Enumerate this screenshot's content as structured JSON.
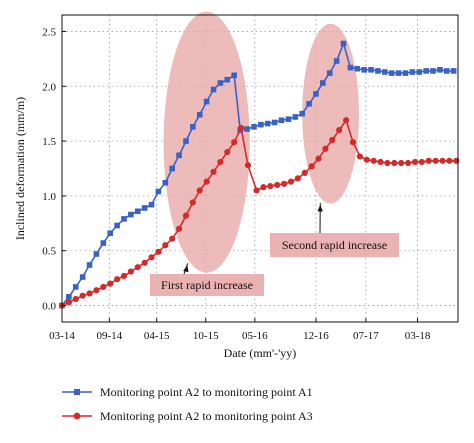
{
  "chart_data": {
    "type": "line",
    "xlabel": "Date (mm'-'yy)",
    "ylabel": "Inclined deformation (mm/m)",
    "xlim": [
      0,
      46
    ],
    "ylim": [
      -0.15,
      2.65
    ],
    "x_ticks": [
      {
        "x": 0,
        "label": "03-14"
      },
      {
        "x": 5.5,
        "label": "09-14"
      },
      {
        "x": 11,
        "label": "04-15"
      },
      {
        "x": 16.7,
        "label": "10-15"
      },
      {
        "x": 22.4,
        "label": "05-16"
      },
      {
        "x": 29.5,
        "label": "12-16"
      },
      {
        "x": 35.3,
        "label": "07-17"
      },
      {
        "x": 41.3,
        "label": "03-18"
      }
    ],
    "y_ticks": [
      0.0,
      0.5,
      1.0,
      1.5,
      2.0,
      2.5
    ],
    "y_tick_labels": [
      "0.0",
      "0.5",
      "1.0",
      "1.5",
      "2.0",
      "2.5"
    ],
    "grid": true,
    "series": [
      {
        "name": "Monitoring point A2 to monitoring point A1",
        "color": "#3a62c4",
        "marker": "square",
        "points": [
          [
            0,
            0.0
          ],
          [
            0.8,
            0.08
          ],
          [
            1.6,
            0.17
          ],
          [
            2.4,
            0.26
          ],
          [
            3.2,
            0.37
          ],
          [
            4.0,
            0.47
          ],
          [
            4.8,
            0.57
          ],
          [
            5.6,
            0.66
          ],
          [
            6.4,
            0.73
          ],
          [
            7.2,
            0.79
          ],
          [
            8.0,
            0.83
          ],
          [
            8.8,
            0.86
          ],
          [
            9.6,
            0.89
          ],
          [
            10.4,
            0.92
          ],
          [
            11.2,
            1.04
          ],
          [
            12.0,
            1.12
          ],
          [
            12.8,
            1.25
          ],
          [
            13.6,
            1.37
          ],
          [
            14.4,
            1.5
          ],
          [
            15.2,
            1.63
          ],
          [
            16.0,
            1.74
          ],
          [
            16.8,
            1.86
          ],
          [
            17.6,
            1.97
          ],
          [
            18.4,
            2.03
          ],
          [
            19.2,
            2.06
          ],
          [
            20.0,
            2.1
          ],
          [
            20.7,
            1.6
          ],
          [
            21.5,
            1.61
          ],
          [
            22.3,
            1.63
          ],
          [
            23.1,
            1.65
          ],
          [
            23.9,
            1.66
          ],
          [
            24.7,
            1.67
          ],
          [
            25.5,
            1.69
          ],
          [
            26.3,
            1.7
          ],
          [
            27.1,
            1.72
          ],
          [
            27.9,
            1.75
          ],
          [
            28.7,
            1.84
          ],
          [
            29.5,
            1.93
          ],
          [
            30.3,
            2.03
          ],
          [
            31.1,
            2.12
          ],
          [
            31.9,
            2.23
          ],
          [
            32.7,
            2.39
          ],
          [
            33.5,
            2.17
          ],
          [
            34.3,
            2.16
          ],
          [
            35.1,
            2.15
          ],
          [
            35.9,
            2.15
          ],
          [
            36.7,
            2.14
          ],
          [
            37.5,
            2.13
          ],
          [
            38.3,
            2.12
          ],
          [
            39.1,
            2.12
          ],
          [
            39.9,
            2.12
          ],
          [
            40.7,
            2.13
          ],
          [
            41.5,
            2.13
          ],
          [
            42.3,
            2.14
          ],
          [
            43.1,
            2.14
          ],
          [
            43.9,
            2.15
          ],
          [
            44.7,
            2.14
          ],
          [
            45.5,
            2.14
          ]
        ]
      },
      {
        "name": "Monitoring point A2 to monitoring point A3",
        "color": "#d42a2a",
        "marker": "circle",
        "points": [
          [
            0,
            0.0
          ],
          [
            0.8,
            0.03
          ],
          [
            1.6,
            0.06
          ],
          [
            2.4,
            0.09
          ],
          [
            3.2,
            0.11
          ],
          [
            4.0,
            0.14
          ],
          [
            4.8,
            0.17
          ],
          [
            5.6,
            0.2
          ],
          [
            6.4,
            0.24
          ],
          [
            7.2,
            0.27
          ],
          [
            8.0,
            0.31
          ],
          [
            8.8,
            0.35
          ],
          [
            9.6,
            0.39
          ],
          [
            10.4,
            0.44
          ],
          [
            11.2,
            0.49
          ],
          [
            12.0,
            0.55
          ],
          [
            12.8,
            0.61
          ],
          [
            13.6,
            0.7
          ],
          [
            14.4,
            0.82
          ],
          [
            15.2,
            0.94
          ],
          [
            16.0,
            1.05
          ],
          [
            16.8,
            1.13
          ],
          [
            17.6,
            1.22
          ],
          [
            18.4,
            1.31
          ],
          [
            19.2,
            1.4
          ],
          [
            20.0,
            1.49
          ],
          [
            20.8,
            1.62
          ],
          [
            21.6,
            1.28
          ],
          [
            22.6,
            1.05
          ],
          [
            23.4,
            1.08
          ],
          [
            24.2,
            1.09
          ],
          [
            25.0,
            1.1
          ],
          [
            25.8,
            1.11
          ],
          [
            26.6,
            1.13
          ],
          [
            27.4,
            1.16
          ],
          [
            28.2,
            1.21
          ],
          [
            29.0,
            1.27
          ],
          [
            29.8,
            1.34
          ],
          [
            30.6,
            1.43
          ],
          [
            31.4,
            1.51
          ],
          [
            32.2,
            1.6
          ],
          [
            33.0,
            1.69
          ],
          [
            33.8,
            1.49
          ],
          [
            34.6,
            1.36
          ],
          [
            35.4,
            1.33
          ],
          [
            36.2,
            1.32
          ],
          [
            37.0,
            1.31
          ],
          [
            37.8,
            1.3
          ],
          [
            38.6,
            1.3
          ],
          [
            39.4,
            1.3
          ],
          [
            40.2,
            1.3
          ],
          [
            41.0,
            1.31
          ],
          [
            41.8,
            1.31
          ],
          [
            42.6,
            1.32
          ],
          [
            43.4,
            1.32
          ],
          [
            44.2,
            1.32
          ],
          [
            45.0,
            1.32
          ],
          [
            45.8,
            1.32
          ]
        ]
      }
    ],
    "annotations": [
      {
        "text": "First rapid increase",
        "anchor": [
          14.6,
          0.44
        ]
      },
      {
        "text": "Second rapid increase",
        "anchor": [
          30.0,
          0.99
        ]
      }
    ],
    "highlights": [
      {
        "cx": 16.8,
        "cy": 1.49,
        "rx": 5.0,
        "ry": 1.19
      },
      {
        "cx": 31.2,
        "cy": 1.75,
        "rx": 3.3,
        "ry": 0.82
      }
    ],
    "highlight_color": "#e8a4a4",
    "legend_position": "bottom"
  }
}
